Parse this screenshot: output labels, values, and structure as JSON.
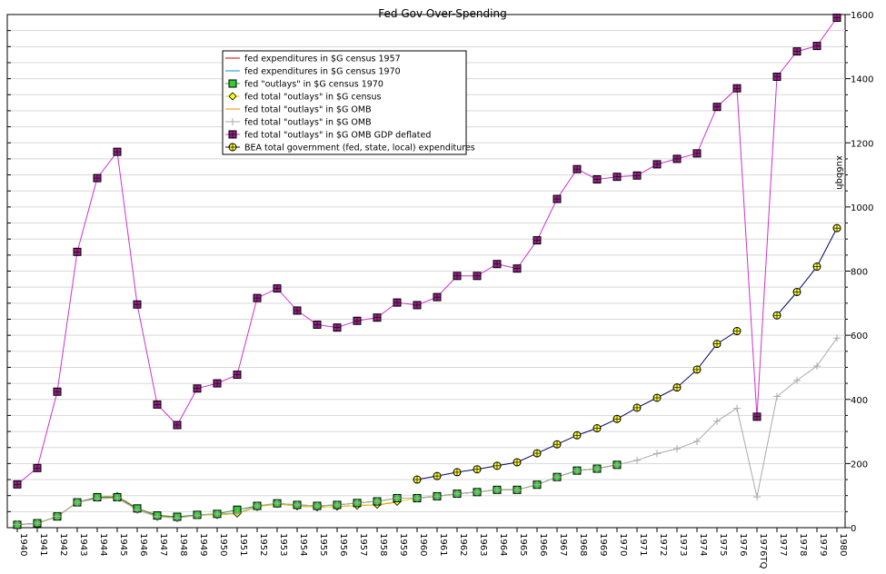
{
  "chart_data": {
    "type": "line",
    "title": "Fed Gov Over-Spending",
    "xlabel": "",
    "ylabel": "",
    "y2label": "xu6bqh",
    "ylim": [
      0,
      1600
    ],
    "yticks": [
      0,
      200,
      400,
      600,
      800,
      1000,
      1200,
      1400,
      1600
    ],
    "grid": true,
    "legend_position": "top-left",
    "categories": [
      "1940",
      "1941",
      "1942",
      "1943",
      "1944",
      "1945",
      "1946",
      "1947",
      "1948",
      "1949",
      "1950",
      "1951",
      "1952",
      "1953",
      "1954",
      "1955",
      "1956",
      "1957",
      "1958",
      "1959",
      "1960",
      "1961",
      "1962",
      "1963",
      "1964",
      "1965",
      "1966",
      "1967",
      "1968",
      "1969",
      "1970",
      "1971",
      "1972",
      "1973",
      "1974",
      "1975",
      "1976",
      "1976TQ",
      "1977",
      "1978",
      "1979",
      "1980"
    ],
    "series": [
      {
        "name": "fed expenditures in $G census 1957",
        "color": "#cc0000",
        "marker": "none",
        "values": [
          10,
          13,
          35,
          79,
          95,
          98,
          60,
          39,
          33,
          39,
          40,
          44,
          65,
          74,
          67,
          64,
          66,
          69,
          71,
          80,
          null,
          null,
          null,
          null,
          null,
          null,
          null,
          null,
          null,
          null,
          null,
          null,
          null,
          null,
          null,
          null,
          null,
          null,
          null,
          null,
          null,
          null
        ]
      },
      {
        "name": "fed expenditures in $G census 1970",
        "color": "#0099cc",
        "marker": "none",
        "values": [
          null,
          null,
          null,
          null,
          null,
          null,
          null,
          null,
          null,
          null,
          null,
          null,
          null,
          null,
          null,
          null,
          null,
          null,
          null,
          null,
          92,
          98,
          106,
          111,
          118,
          118,
          134,
          158,
          178,
          184,
          196,
          null,
          null,
          null,
          null,
          null,
          null,
          null,
          null,
          null,
          null,
          null
        ]
      },
      {
        "name": "fed \"outlays\" in $G census 1970",
        "color": "#339933",
        "marker": "square-green",
        "values": [
          9,
          14,
          35,
          79,
          95,
          95,
          60,
          38,
          34,
          40,
          43,
          56,
          68,
          76,
          71,
          68,
          71,
          77,
          82,
          92,
          92,
          98,
          106,
          111,
          118,
          118,
          134,
          158,
          178,
          184,
          196,
          null,
          null,
          null,
          null,
          null,
          null,
          null,
          null,
          null,
          null,
          null
        ]
      },
      {
        "name": "fed total \"outlays\" in $G census",
        "color": "#dddd00",
        "marker": "diamond-yellow",
        "values": [
          9,
          14,
          34,
          79,
          93,
          98,
          56,
          34,
          30,
          39,
          40,
          44,
          65,
          74,
          67,
          64,
          66,
          69,
          72,
          81,
          92,
          98,
          106,
          111,
          118,
          118,
          134,
          158,
          178,
          184,
          196,
          null,
          null,
          null,
          null,
          null,
          null,
          null,
          null,
          null,
          null,
          null
        ]
      },
      {
        "name": "fed total \"outlays\" in $G OMB",
        "color": "#ff8800",
        "marker": "none",
        "values": [
          10,
          14,
          35,
          79,
          91,
          93,
          55,
          35,
          30,
          39,
          43,
          45,
          68,
          76,
          71,
          68,
          71,
          77,
          82,
          92,
          92,
          98,
          106,
          111,
          118,
          118,
          134,
          158,
          178,
          184,
          196,
          null,
          null,
          null,
          null,
          null,
          null,
          null,
          null,
          null,
          null,
          null
        ]
      },
      {
        "name": "fed total \"outlays\" in $G OMB",
        "color": "#aaaaaa",
        "marker": "plus-gray",
        "values": [
          10,
          14,
          35,
          79,
          91,
          93,
          55,
          35,
          30,
          39,
          43,
          45,
          68,
          76,
          71,
          68,
          71,
          77,
          82,
          92,
          92,
          98,
          106,
          111,
          118,
          118,
          134,
          158,
          178,
          184,
          196,
          210,
          231,
          246,
          269,
          332,
          372,
          96,
          409,
          459,
          504,
          591
        ]
      },
      {
        "name": "fed total \"outlays\" in $G OMB GDP deflated",
        "color": "#cc33cc",
        "marker": "square-purple",
        "values": [
          135,
          186,
          424,
          860,
          1090,
          1172,
          696,
          384,
          320,
          434,
          450,
          477,
          716,
          746,
          677,
          633,
          624,
          645,
          655,
          702,
          694,
          719,
          785,
          785,
          822,
          808,
          896,
          1025,
          1118,
          1086,
          1094,
          1098,
          1133,
          1150,
          1167,
          1312,
          1370,
          346,
          1406,
          1485,
          1502,
          1590
        ]
      },
      {
        "name": "BEA total government (fed, state, local) expenditures",
        "color": "#000066",
        "marker": "circle-plus-yellow",
        "values": [
          null,
          null,
          null,
          null,
          null,
          null,
          null,
          null,
          null,
          null,
          null,
          null,
          null,
          null,
          null,
          null,
          null,
          null,
          null,
          null,
          150,
          161,
          173,
          182,
          193,
          204,
          232,
          260,
          288,
          310,
          339,
          374,
          405,
          437,
          493,
          573,
          613,
          null,
          662,
          735,
          814,
          934
        ]
      }
    ]
  }
}
